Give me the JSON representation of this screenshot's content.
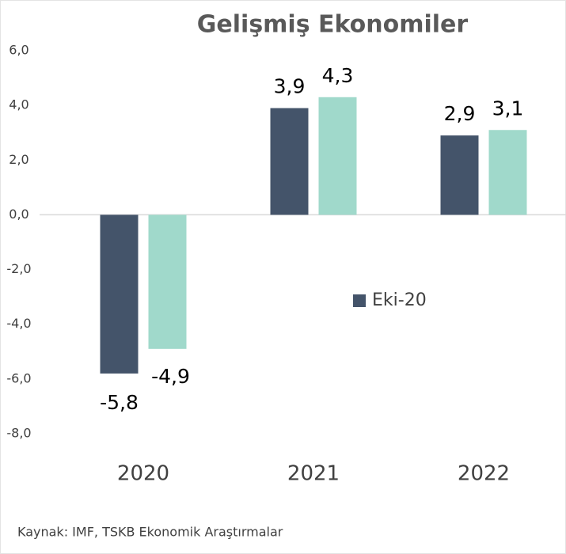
{
  "chart_data": {
    "type": "bar",
    "title": "Gelişmiş Ekonomiler",
    "categories": [
      "2020",
      "2021",
      "2022"
    ],
    "series": [
      {
        "name": "Eki-20",
        "color": "#44546a",
        "values": [
          -5.8,
          3.9,
          2.9
        ],
        "value_labels": [
          "-5,8",
          "3,9",
          "2,9"
        ]
      },
      {
        "color": "#a0d9cb",
        "values": [
          -4.9,
          4.3,
          3.1
        ],
        "value_labels": [
          "-4,9",
          "4,3",
          "3,1"
        ]
      }
    ],
    "ylim": [
      -8,
      6
    ],
    "yticks": [
      {
        "value": 6,
        "label": "6,0"
      },
      {
        "value": 4,
        "label": "4,0"
      },
      {
        "value": 2,
        "label": "2,0"
      },
      {
        "value": 0,
        "label": "0,0"
      },
      {
        "value": -2,
        "label": "-2,0"
      },
      {
        "value": -4,
        "label": "-4,0"
      },
      {
        "value": -6,
        "label": "-6,0"
      },
      {
        "value": -8,
        "label": "-8,0"
      }
    ],
    "grid": false,
    "source": "Kaynak: IMF, TSKB Ekonomik Araştırmalar"
  }
}
